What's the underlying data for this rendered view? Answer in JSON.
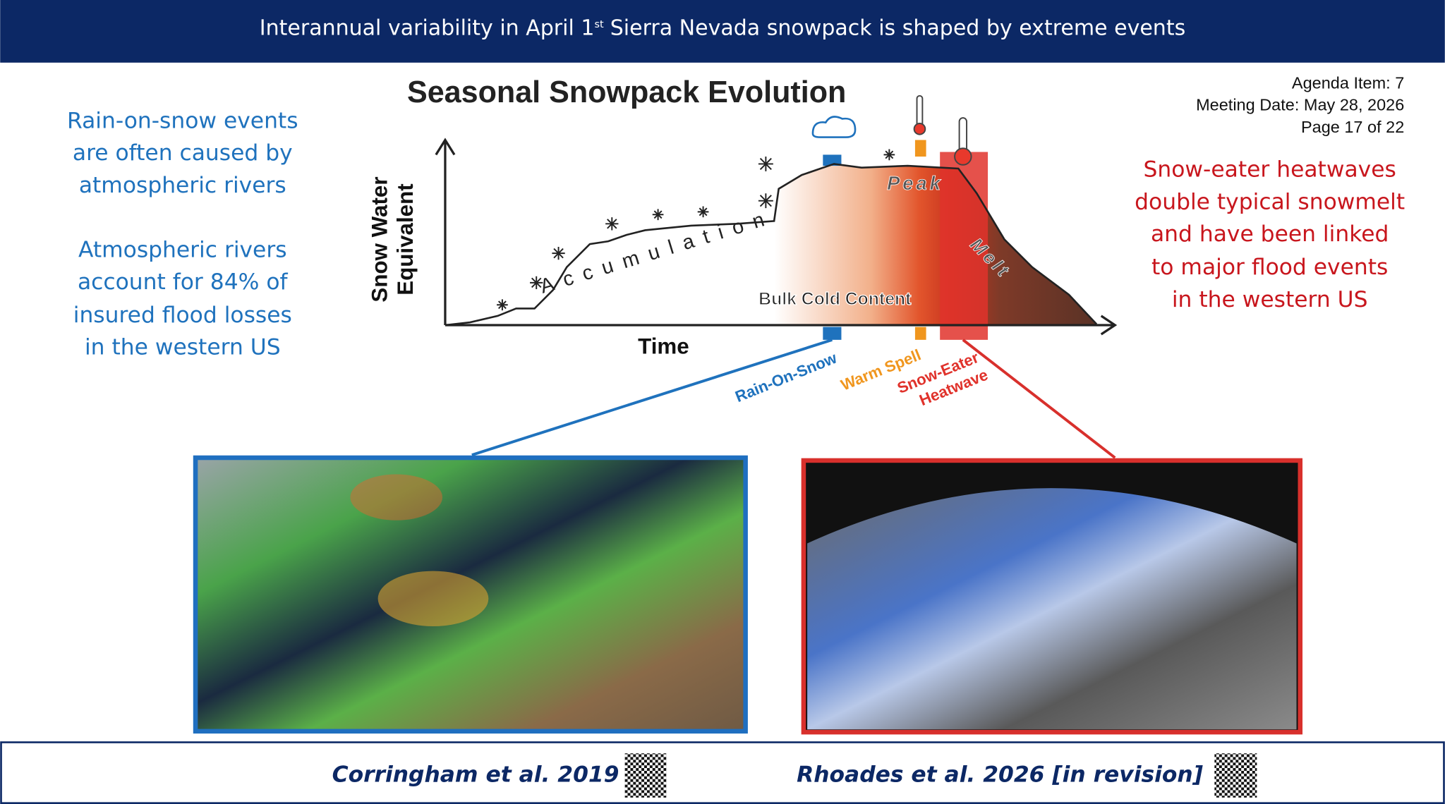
{
  "header": {
    "title_parts": [
      "Interannual variability in April 1",
      "st",
      "Sierra Nevada snowpack is shaped by extreme events"
    ]
  },
  "left_notes": [
    [
      "Rain-on-snow events",
      "are often caused by",
      "atmospheric rivers"
    ],
    [
      "Atmospheric rivers",
      "account for 84% of",
      "insured flood losses",
      "in the western US"
    ]
  ],
  "agenda": [
    "Agenda Item: 7",
    "Meeting Date: May 28, 2026",
    "Page 17 of 22"
  ],
  "right_note": [
    "Snow-eater heatwaves",
    "double typical snowmelt",
    "and have been linked",
    "to major flood events",
    "in the western US"
  ],
  "diagram": {
    "title": "Seasonal Snowpack Evolution",
    "y_axis_label": [
      "Snow Water",
      "Equivalent"
    ],
    "x_axis_label": "Time",
    "phases": {
      "accumulation": "Accumulation",
      "peak": "Peak",
      "melt": "Melt",
      "bulk_cold_content": "Bulk Cold Content"
    },
    "events": {
      "rain_on_snow": "Rain-On-Snow",
      "warm_spell": "Warm Spell",
      "snow_eater_heatwave": [
        "Snow-Eater",
        "Heatwave"
      ]
    }
  },
  "footer": {
    "citations": [
      "Corringham et al. 2019",
      "Rhoades et al. 2026 [in revision]"
    ]
  }
}
